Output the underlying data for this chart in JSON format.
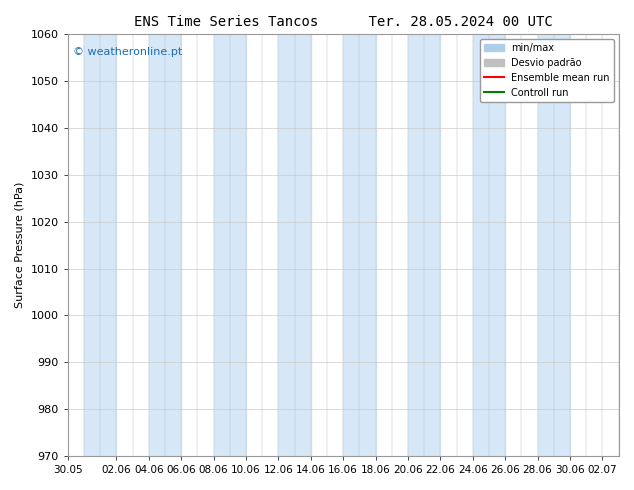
{
  "title": "ENS Time Series Tancos      Ter. 28.05.2024 00 UTC",
  "ylabel": "Surface Pressure (hPa)",
  "ylim": [
    970,
    1060
  ],
  "yticks": [
    970,
    980,
    990,
    1000,
    1010,
    1020,
    1030,
    1040,
    1050,
    1060
  ],
  "xlabels": [
    "30.05",
    "02.06",
    "04.06",
    "06.06",
    "08.06",
    "10.06",
    "12.06",
    "14.06",
    "16.06",
    "18.06",
    "20.06",
    "22.06",
    "24.06",
    "26.06",
    "28.06",
    "30.06",
    "02.07"
  ],
  "xtick_positions": [
    0,
    3,
    5,
    7,
    9,
    11,
    13,
    15,
    17,
    19,
    21,
    23,
    25,
    27,
    29,
    31,
    33
  ],
  "band_color": "#d6e8f7",
  "background_color": "#ffffff",
  "watermark": "© weatheronline.pt",
  "legend_labels": [
    "min/max",
    "Desvio padrão",
    "Ensemble mean run",
    "Controll run"
  ],
  "legend_colors": [
    "#aecde8",
    "#c0c0c0",
    "#ff0000",
    "#008000"
  ],
  "fig_width": 6.34,
  "fig_height": 4.9,
  "dpi": 100
}
